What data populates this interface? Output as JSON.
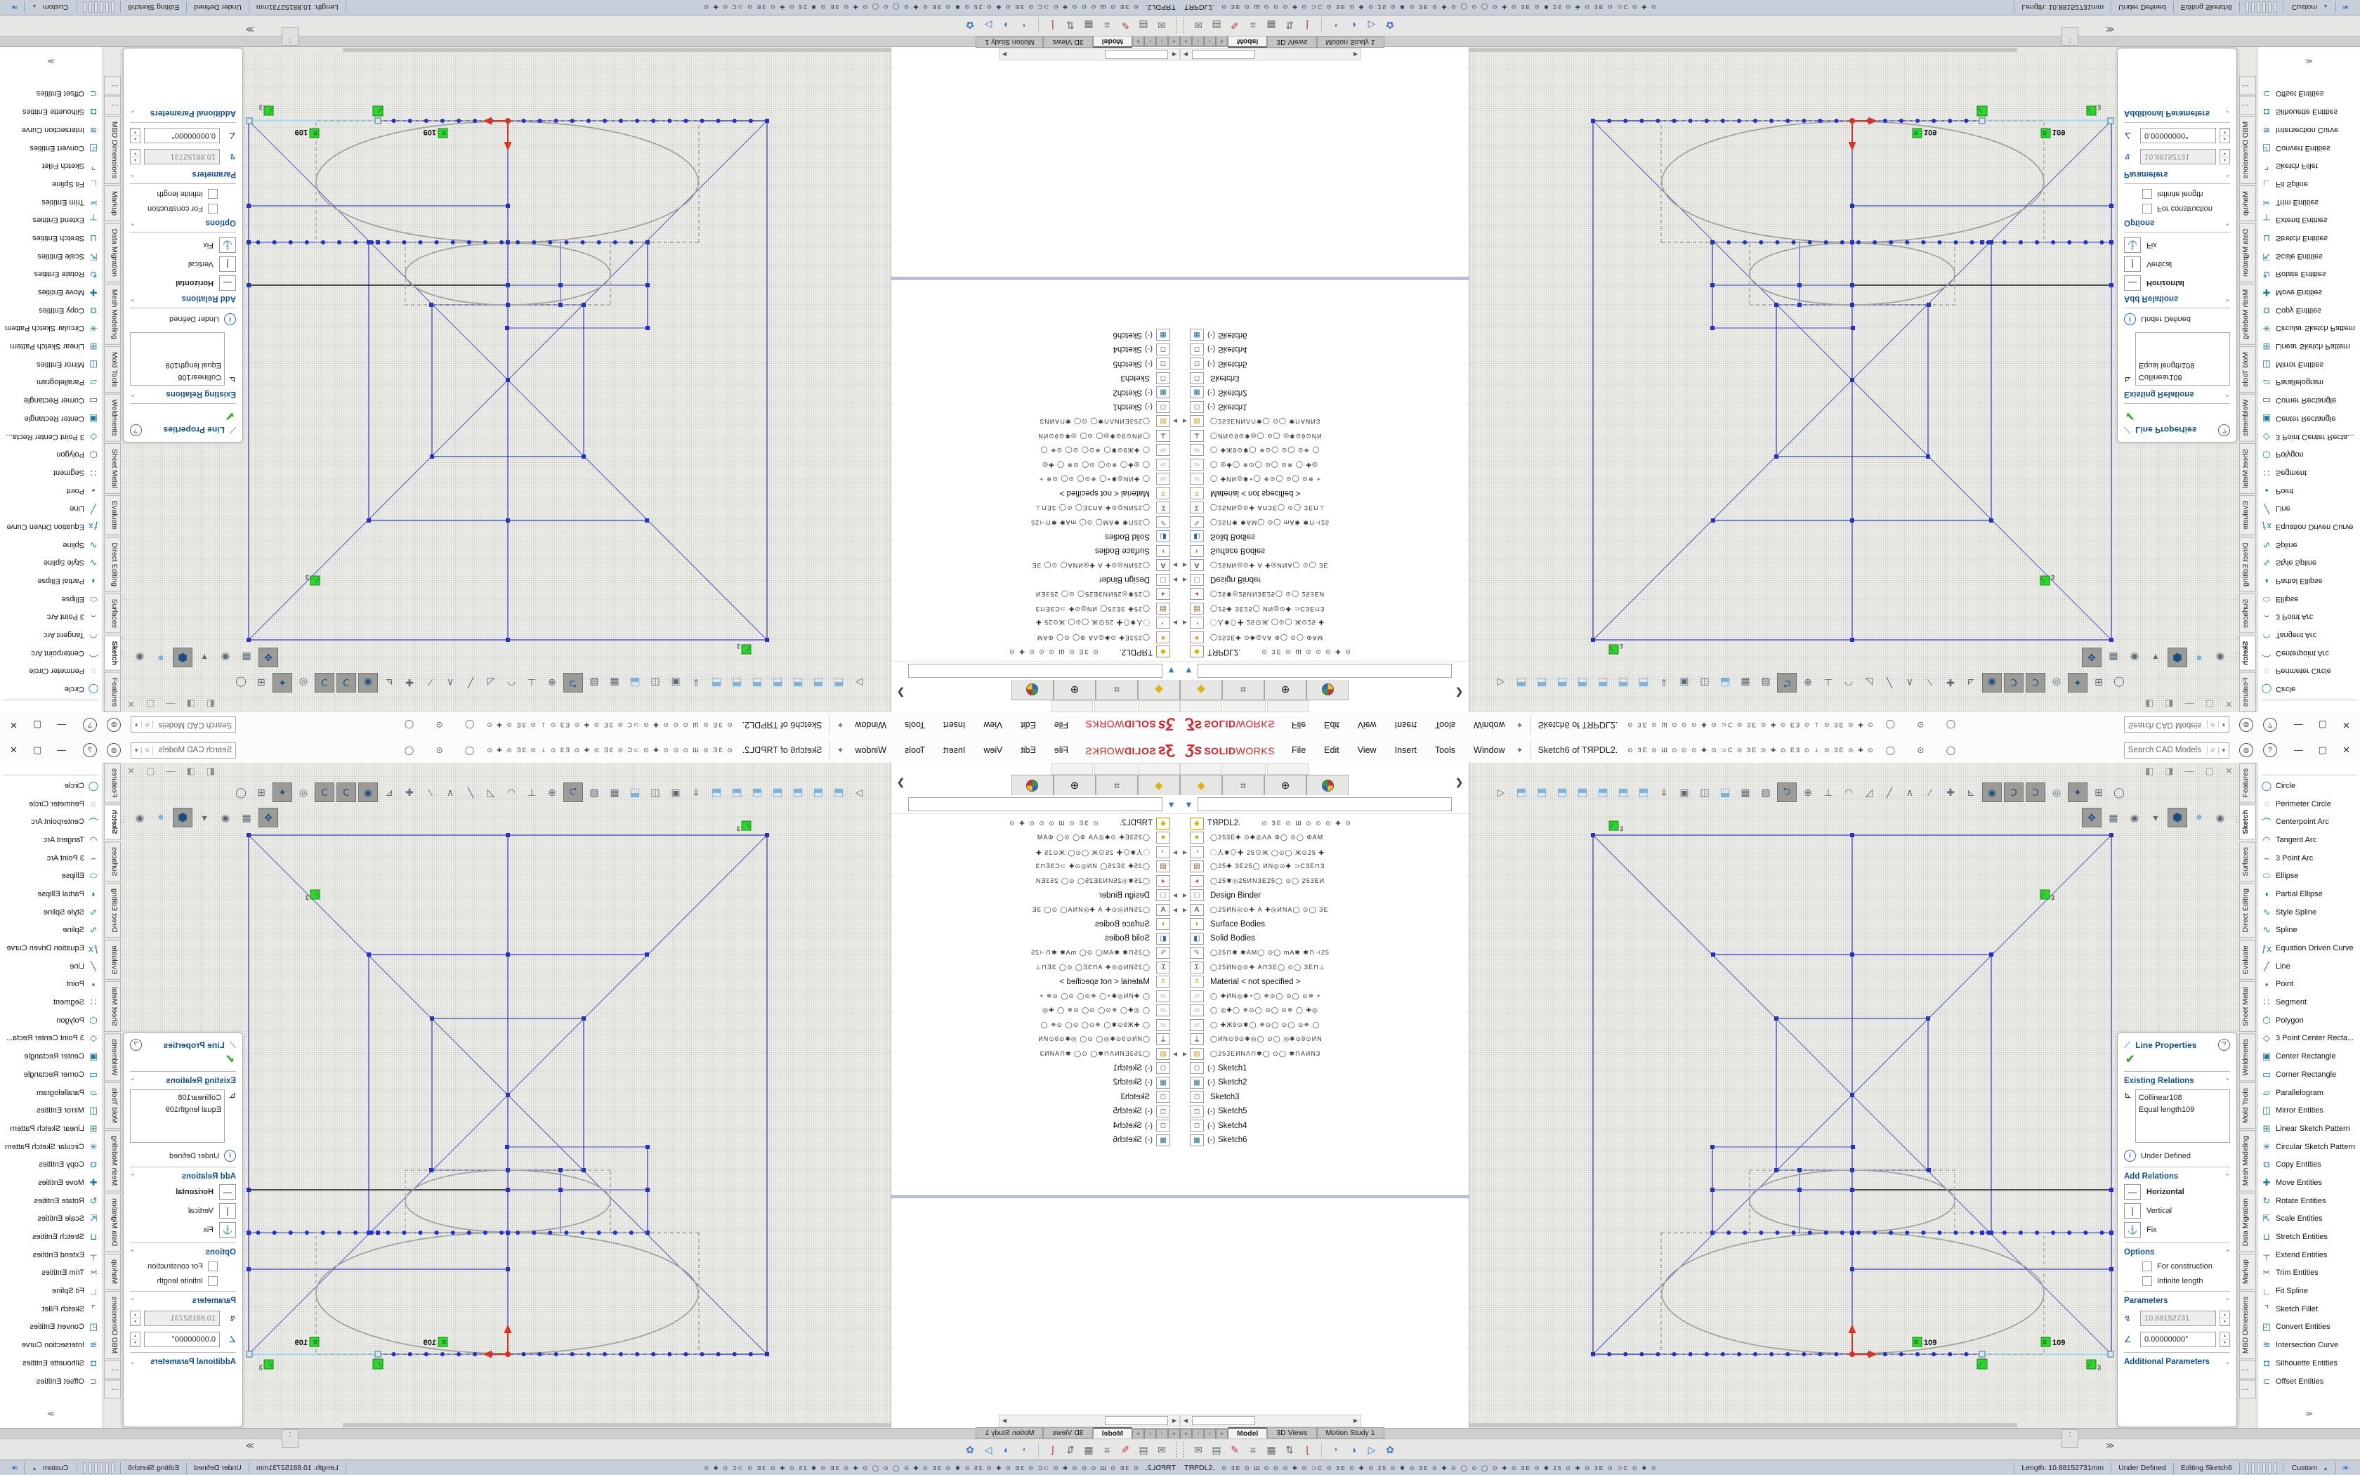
{
  "window": {
    "logo_zs": "Ʒs",
    "logo_solid": "SOLID",
    "logo_works": "WORKS",
    "menus": [
      "File",
      "Edit",
      "View",
      "Insert",
      "Tools",
      "Window"
    ],
    "pin": "✦",
    "doc_title": "Sketch6 of TЯPDL2.",
    "titlebar_glyphs": "⊙ ЗЕ ⊙ Ш ⊙ ⊙ ⊙ ✚ ⊙ ⊃C ⊙ ЗЕ ⊙ ✚ ⊙ ЕЗ ⊙ ⊥ ⊙ ЗЕ ⊙ ✚ ⊙",
    "titlebar_circles": "◯ ⊙ ◯",
    "search_placeholder": "Search CAD Models",
    "search_icon": "🔍",
    "search_dd": "▼",
    "account_icon": "⊚",
    "help_icon": "?",
    "btn_min": "—",
    "btn_restore": "▢",
    "btn_close": "✕"
  },
  "panel_tabs": [
    {
      "icon": "◆",
      "cls": "yellow",
      "name": "featuremanager"
    },
    {
      "icon": "⌗",
      "name": "propertymanager"
    },
    {
      "icon": "⊕",
      "name": "configurations"
    },
    {
      "icon": "",
      "name": "dimxpert",
      "ball": true
    }
  ],
  "feature_tree": {
    "collapse_chevron": "❯",
    "root_label": "TЯPDL2.",
    "root_suffix": "⊙ ЗЕ ⊙ Ш ⊙ ⊙ ⊙ ✚ ⊙",
    "items": [
      {
        "exp": "",
        "icon": "★",
        "ic": "#c9a227",
        "label": "◯253Е✚ ⊙✱◎ΛА Φ◯ ⊙◯ ΦАМ",
        "cls": "soup"
      },
      {
        "exp": "▶",
        "icon": "◔",
        "ic": "#8a6d2f",
        "label": "◯人✱◎✚ 25⊙Ж ◯⊙◯ Ж⊙25 ✚",
        "cls": "soup"
      },
      {
        "exp": "",
        "icon": "▤",
        "ic": "#7a5c28",
        "label": "◯25✚ ЗЕ25◯ ИN◎⊙✚ ⊃CЗЕ⊓З",
        "cls": "soup"
      },
      {
        "exp": "",
        "icon": "◕",
        "ic": "#b03a2e",
        "label": "◯25✱◎25ИNЗЕ25◯ ⊙◯ 253ЕИ",
        "cls": "soup"
      },
      {
        "exp": "▶",
        "icon": "▢",
        "ic": "#8a8a8a",
        "label": "Design Binder",
        "cls": ""
      },
      {
        "exp": "▶",
        "icon": "A",
        "ic": "#222222",
        "label": "◯25ИN◎⊙✚ А ✚◎ИNА◯ ⊙◯ ЗЕ",
        "cls": "soup"
      },
      {
        "exp": "",
        "icon": "◗",
        "ic": "#c9861e",
        "label": "Surface Bodies",
        "cls": ""
      },
      {
        "exp": "",
        "icon": "◧",
        "ic": "#2e64a8",
        "label": "Solid Bodies",
        "cls": ""
      },
      {
        "exp": "",
        "icon": "✎",
        "ic": "#777777",
        "label": "◯25⊓✱ ✱АМ◯ ⊙◯ mА✱ ✱⊓⊣25",
        "cls": "soup"
      },
      {
        "exp": "",
        "icon": "Σ",
        "ic": "#333333",
        "label": "◯25ИN◎⊙✚ А⊓ЗЕ◯ ⊙◯ ЗЕ⊓⊥",
        "cls": "soup"
      },
      {
        "exp": "",
        "icon": "≡",
        "ic": "#b59a2a",
        "label": "Material  < not specified >",
        "cls": ""
      },
      {
        "exp": "",
        "icon": "▱",
        "ic": "#8a8aa0",
        "label": "◯ ✚ИN◎✱+◯ ✵⊙◯ ⊙◯ ⊙✵ +",
        "cls": "soup"
      },
      {
        "exp": "",
        "icon": "▱",
        "ic": "#8a8aa0",
        "label": "◯ ◎✚◯ ✵⊙◯ ⊙◯ ⊙✵ ◯ ✚◎",
        "cls": "soup"
      },
      {
        "exp": "",
        "icon": "▱",
        "ic": "#8a8aa0",
        "label": "◯ ✚Ж9⊙✱◯ ✵⊙◯ ⊙◯ ⊙✵ ◯",
        "cls": "soup"
      },
      {
        "exp": "",
        "icon": "⟂",
        "ic": "#333333",
        "label": "◯ИN⊙9⊙✱◎◯ ⊙◯ ◎✱⊙9⊙ИN",
        "cls": "soup"
      },
      {
        "exp": "▶",
        "icon": "▨",
        "ic": "#c9a227",
        "label": "◯253ЕИNΛ⊓✱◯ ⊙◯ ✱⊓АИNЗ",
        "cls": "soup"
      },
      {
        "exp": "",
        "icon": "◻",
        "ic": "#5a5a5a",
        "pre": "(-)",
        "label": "Sketch1",
        "cls": ""
      },
      {
        "exp": "",
        "icon": "▦",
        "ic": "#2b6b8a",
        "pre": "(-)",
        "label": "Sketch2",
        "cls": ""
      },
      {
        "exp": "",
        "icon": "◻",
        "ic": "#5a5a5a",
        "pre": "",
        "label": "Sketch3",
        "cls": ""
      },
      {
        "exp": "",
        "icon": "◻",
        "ic": "#5a5a5a",
        "pre": "(-)",
        "label": "Sketch5",
        "cls": ""
      },
      {
        "exp": "",
        "icon": "◻",
        "ic": "#5a5a5a",
        "pre": "(-)",
        "label": "Sketch4",
        "cls": ""
      },
      {
        "exp": "",
        "icon": "▦",
        "ic": "#2b6b8a",
        "pre": "(-)",
        "label": "Sketch6",
        "cls": ""
      }
    ]
  },
  "hud_row1": [
    {
      "g": "▷"
    },
    {
      "g": "⬒",
      "c": 1
    },
    {
      "g": "⬒",
      "c": 1
    },
    {
      "g": "⬒",
      "c": 1
    },
    {
      "g": "⬒",
      "c": 1
    },
    {
      "g": "⬒",
      "c": 1
    },
    {
      "g": "⬒",
      "c": 1
    },
    {
      "g": "⬒",
      "c": 1
    },
    {
      "g": "⇓"
    },
    {
      "g": "▣"
    },
    {
      "g": "◫"
    },
    {
      "g": "⬓",
      "c": 1
    },
    {
      "g": "▦"
    },
    {
      "g": "▧"
    },
    {
      "g": "⮌",
      "p": 1
    },
    {
      "g": "⊕"
    },
    {
      "g": "⊥"
    },
    {
      "g": "◠"
    },
    {
      "g": "◿"
    },
    {
      "g": "╱"
    },
    {
      "g": "∧"
    },
    {
      "g": "∕"
    },
    {
      "g": "✚"
    },
    {
      "g": "⊾"
    },
    {
      "g": "◉",
      "p": 1
    },
    {
      "g": "Ↄ",
      "p": 1
    },
    {
      "g": "Ↄ",
      "p": 1
    },
    {
      "g": "◎"
    },
    {
      "g": "✦",
      "p": 1
    },
    {
      "g": "⊞"
    },
    {
      "g": "◯"
    }
  ],
  "hud_row2": [
    {
      "g": "✥",
      "p": 1
    },
    {
      "g": "▦"
    },
    {
      "g": "◉"
    },
    {
      "g": "▾"
    },
    {
      "g": "⬢",
      "p": 1,
      "c": 1
    },
    {
      "g": "●",
      "c": 1
    },
    {
      "g": "◉"
    },
    {
      "g": "⬜"
    }
  ],
  "mdi_buttons": [
    "◧",
    "◨",
    "—",
    "▢",
    "✕"
  ],
  "sketch": {
    "dim1": "109",
    "dim2": "109",
    "rel_eq": "≡",
    "rel_slash": "∕",
    "tag_glyph": "∕",
    "tag_num": "3"
  },
  "line_properties": {
    "icon": "⟋",
    "title": "Line Properties",
    "help": "?",
    "check": "✔",
    "sec_existing": "Existing Relations",
    "rel_icon": "⊾",
    "relations": [
      "Collinear108",
      "Equal length109"
    ],
    "info_icon": "i",
    "info_text": "Under Defined",
    "sec_add": "Add Relations",
    "add_rows": [
      {
        "icon": "—",
        "label": "Horizontal",
        "b": 1
      },
      {
        "icon": "❘",
        "label": "Vertical",
        "b": 0
      },
      {
        "icon": "⚓",
        "label": "Fix",
        "b": 0
      }
    ],
    "sec_options": "Options",
    "opt_rows": [
      "For construction",
      "Infinite length"
    ],
    "sec_params": "Parameters",
    "param_len_icon": "↯",
    "param_len": "10.88152731",
    "param_ang_icon": "∠",
    "param_ang": "0.00000000°",
    "sec_additional": "Additional Parameters",
    "collapse": "⌃",
    "expand": "⌄"
  },
  "right_tabs": [
    {
      "label": "Features"
    },
    {
      "label": "Sketch",
      "active": 1
    },
    {
      "label": "Surfaces"
    },
    {
      "label": "Direct Editing"
    },
    {
      "label": "Evaluate"
    },
    {
      "label": "Sheet Metal"
    },
    {
      "label": "Weldments"
    },
    {
      "label": "Mold Tools"
    },
    {
      "label": "Mesh Modeling"
    },
    {
      "label": "Data Migration"
    },
    {
      "label": "Markup"
    },
    {
      "label": "MBD Dimensions"
    },
    {
      "label": "⋮"
    },
    {
      "label": "⋮"
    }
  ],
  "sketch_tools": [
    {
      "icon": "◯",
      "label": "Circle"
    },
    {
      "icon": "◌",
      "label": "Perimeter Circle"
    },
    {
      "icon": "⌒",
      "label": "Centerpoint Arc"
    },
    {
      "icon": "◠",
      "label": "Tangent Arc"
    },
    {
      "icon": "⌢",
      "label": "3 Point Arc"
    },
    {
      "icon": "⬭",
      "label": "Ellipse"
    },
    {
      "icon": "◖",
      "label": "Partial Ellipse"
    },
    {
      "icon": "∿",
      "label": "Style Spline"
    },
    {
      "icon": "∿",
      "label": "Spline"
    },
    {
      "icon": "ƒx",
      "label": "Equation Driven Curve"
    },
    {
      "icon": "╱",
      "label": "Line"
    },
    {
      "icon": "▪",
      "label": "Point"
    },
    {
      "icon": "∷",
      "label": "Segment"
    },
    {
      "icon": "⬡",
      "label": "Polygon"
    },
    {
      "icon": "◇",
      "label": "3 Point Center Recta..."
    },
    {
      "icon": "▣",
      "label": "Center Rectangle"
    },
    {
      "icon": "▭",
      "label": "Corner Rectangle"
    },
    {
      "icon": "▱",
      "label": "Parallelogram"
    },
    {
      "icon": "◫",
      "label": "Mirror Entities"
    },
    {
      "icon": "⊞",
      "label": "Linear Sketch Pattern"
    },
    {
      "icon": "✳",
      "label": "Circular Sketch Pattern"
    },
    {
      "icon": "⧉",
      "label": "Copy Entities"
    },
    {
      "icon": "✚",
      "label": "Move Entities"
    },
    {
      "icon": "↻",
      "label": "Rotate Entities"
    },
    {
      "icon": "⇱",
      "label": "Scale Entities"
    },
    {
      "icon": "⊔",
      "label": "Stretch Entities"
    },
    {
      "icon": "┬",
      "label": "Extend Entities"
    },
    {
      "icon": "✂",
      "label": "Trim Entities"
    },
    {
      "icon": "∟",
      "label": "Fit Spline"
    },
    {
      "icon": "⌝",
      "label": "Sketch Fillet"
    },
    {
      "icon": "◰",
      "label": "Convert Entities"
    },
    {
      "icon": "≋",
      "label": "Intersection Curve"
    },
    {
      "icon": "◘",
      "label": "Silhouette Entities"
    },
    {
      "icon": "⊂",
      "label": "Offset Entities"
    }
  ],
  "rlist_more": "≫",
  "doc_tabs": {
    "nav": [
      "«",
      "‹",
      "›",
      "»"
    ],
    "tabs": [
      {
        "label": "Model",
        "active": 1
      },
      {
        "label": "3D Views",
        "active": 0
      },
      {
        "label": "Motion Study 1",
        "active": 0
      }
    ]
  },
  "bottom_toolbar": {
    "icons1": [
      {
        "g": "✉"
      },
      {
        "g": "▤"
      },
      {
        "g": "✎",
        "cls": "colorful"
      },
      {
        "g": "≡"
      },
      {
        "g": "▦"
      },
      {
        "g": "⇅"
      },
      {
        "g": "⌊",
        "cls": "colorful"
      }
    ],
    "icons2": [
      {
        "g": "◔",
        "cls": "blue"
      },
      {
        "g": "◑",
        "cls": "blue"
      },
      {
        "g": "▷",
        "cls": "blue"
      },
      {
        "g": "✿",
        "cls": "blue"
      }
    ],
    "colon": ":",
    "chev": "≫"
  },
  "statusbar": {
    "file": "TЯPDL2.",
    "soup": "⊙ ЗЕ ⊙ Ш ⊙ ⊙ ⊙ ✚ ⊙ ⊃C ⊙ ЗЕ ⊙ ✚ ⊙ 25 ⊙ ✱ ⊙ ЗЕ ⊙ ✚ ⊙    ◯    ⊙    ◯    ⊙ ✚ ⊙ ЗЕ ⊙ ✱ 25 ⊙ ✚ ⊙ ЗЕ ⊙ ⊃C ⊙ ✚ ⊙",
    "length": "Length: 10.88152731mm",
    "state": "Under Defined",
    "editing": "Editing  Sketch6",
    "custom": "Custom",
    "custom_arrow": "▴",
    "icon": "❧"
  }
}
